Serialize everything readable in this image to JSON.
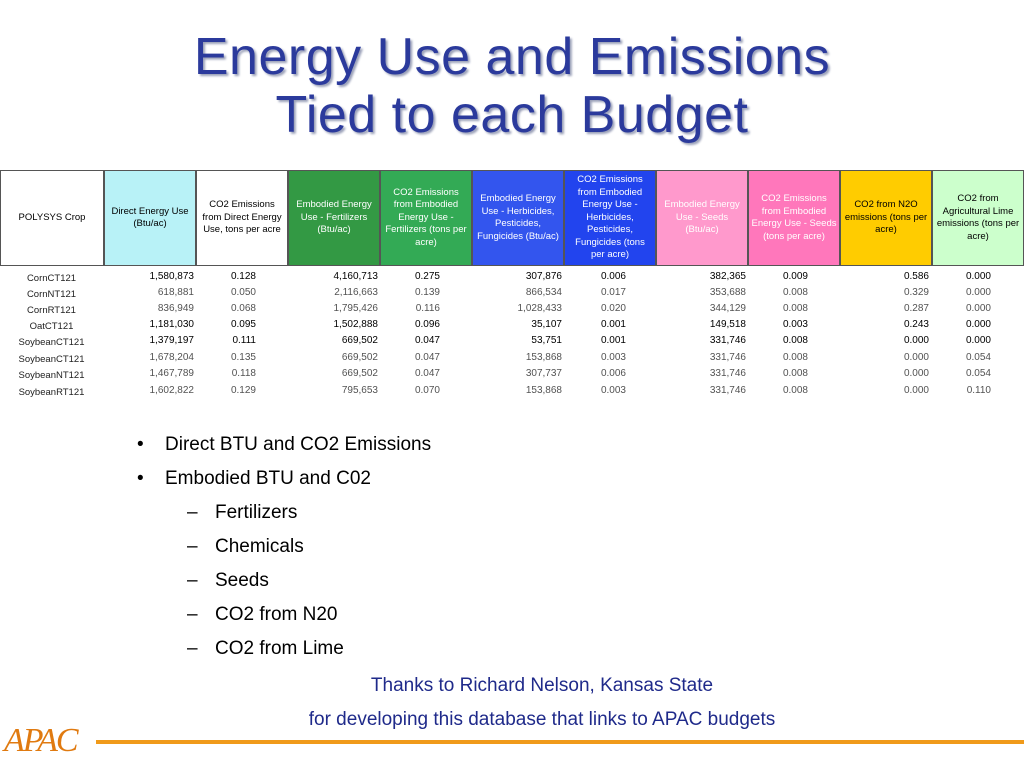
{
  "title": {
    "line1": "Energy Use and Emissions",
    "line2": "Tied to each Budget"
  },
  "table": {
    "corner": "POLYSYS Crop",
    "headers": [
      "Direct Energy Use (Btu/ac)",
      "CO2 Emissions from Direct Energy Use, tons per acre",
      "Embodied Energy Use - Fertilizers (Btu/ac)",
      "CO2 Emissions from Embodied Energy Use - Fertilizers (tons per acre)",
      "Embodied Energy Use - Herbicides, Pesticides, Fungicides (Btu/ac)",
      "CO2 Emissions from Embodied Energy Use - Herbicides, Pesticides, Fungicides (tons per acre)",
      "Embodied Energy Use - Seeds (Btu/ac)",
      "CO2 Emissions from Embodied Energy Use - Seeds (tons per acre)",
      "CO2 from N2O emissions (tons per acre)",
      "CO2 from Agricultural Lime emissions (tons per acre)"
    ],
    "header_colors": [
      "#b8f2f7",
      "#ffffff",
      "#339944",
      "#33aa55",
      "#3355ee",
      "#2244ee",
      "#ff99cc",
      "#ff77bb",
      "#ffcc00",
      "#ccffcc"
    ],
    "header_text_colors": [
      "#000000",
      "#000000",
      "#ffffff",
      "#ffffff",
      "#ffffff",
      "#ffffff",
      "#ffffff",
      "#ffffff",
      "#000000",
      "#000000"
    ],
    "rows": [
      {
        "crop": "CornCT121",
        "values": [
          "1,580,873",
          "0.128",
          "4,160,713",
          "0.275",
          "307,876",
          "0.006",
          "382,365",
          "0.009",
          "0.586",
          "0.000"
        ]
      },
      {
        "crop": "CornNT121",
        "values": [
          "618,881",
          "0.050",
          "2,116,663",
          "0.139",
          "866,534",
          "0.017",
          "353,688",
          "0.008",
          "0.329",
          "0.000"
        ]
      },
      {
        "crop": "CornRT121",
        "values": [
          "836,949",
          "0.068",
          "1,795,426",
          "0.116",
          "1,028,433",
          "0.020",
          "344,129",
          "0.008",
          "0.287",
          "0.000"
        ]
      },
      {
        "crop": "OatCT121",
        "values": [
          "1,181,030",
          "0.095",
          "1,502,888",
          "0.096",
          "35,107",
          "0.001",
          "149,518",
          "0.003",
          "0.243",
          "0.000"
        ]
      },
      {
        "crop": "SoybeanCT121",
        "values": [
          "1,379,197",
          "0.111",
          "669,502",
          "0.047",
          "53,751",
          "0.001",
          "331,746",
          "0.008",
          "0.000",
          "0.000"
        ]
      },
      {
        "crop": "SoybeanCT121",
        "values": [
          "1,678,204",
          "0.135",
          "669,502",
          "0.047",
          "153,868",
          "0.003",
          "331,746",
          "0.008",
          "0.000",
          "0.054"
        ]
      },
      {
        "crop": "SoybeanNT121",
        "values": [
          "1,467,789",
          "0.118",
          "669,502",
          "0.047",
          "307,737",
          "0.006",
          "331,746",
          "0.008",
          "0.000",
          "0.054"
        ]
      },
      {
        "crop": "SoybeanRT121",
        "values": [
          "1,602,822",
          "0.129",
          "795,653",
          "0.070",
          "153,868",
          "0.003",
          "331,746",
          "0.008",
          "0.000",
          "0.110"
        ]
      }
    ]
  },
  "bullets": [
    {
      "level": 1,
      "marker": "•",
      "text": "Direct BTU and CO2 Emissions"
    },
    {
      "level": 1,
      "marker": "•",
      "text": "Embodied BTU and C02"
    },
    {
      "level": 2,
      "marker": "–",
      "text": "Fertilizers"
    },
    {
      "level": 2,
      "marker": "–",
      "text": "Chemicals"
    },
    {
      "level": 2,
      "marker": "–",
      "text": "Seeds"
    },
    {
      "level": 2,
      "marker": "–",
      "text": "CO2 from N20"
    },
    {
      "level": 2,
      "marker": "–",
      "text": "CO2 from Lime"
    }
  ],
  "credit": {
    "line1": "Thanks to Richard Nelson, Kansas State",
    "line2": "for developing this database that links to APAC budgets"
  },
  "logo": "APAC",
  "colors": {
    "title": "#2b3a9c",
    "credit": "#1f2a8a",
    "accent_orange": "#f09a1a"
  }
}
